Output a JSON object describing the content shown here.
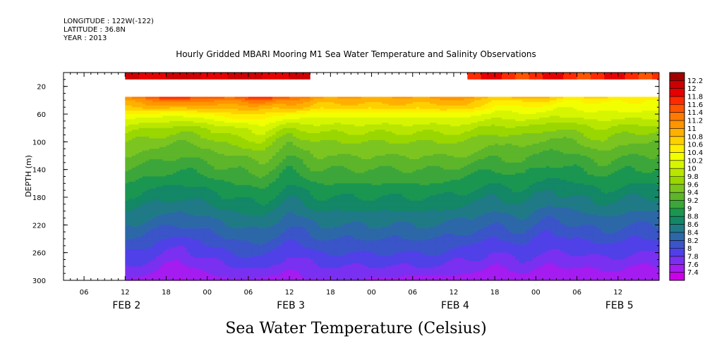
{
  "header": {
    "longitude": "LONGITUDE : 122W(-122)",
    "latitude": "LATITUDE : 36.8N",
    "year": "YEAR : 2013"
  },
  "chart_data": {
    "type": "heatmap",
    "title": "Hourly Gridded MBARI Mooring M1 Sea Water Temperature and Salinity Observations",
    "colorbar_title": "Sea Water Temperature (Celsius)",
    "ylabel": "DEPTH (m)",
    "y_axis": {
      "ylim": [
        300,
        0
      ],
      "inverted": true,
      "ticks": [
        20,
        60,
        100,
        140,
        180,
        220,
        260,
        300
      ]
    },
    "x_axis": {
      "hour_labels": [
        "06",
        "12",
        "18",
        "00",
        "06",
        "12",
        "18",
        "00",
        "06",
        "12",
        "18",
        "00",
        "06",
        "12"
      ],
      "day_labels": [
        "FEB  2",
        "FEB  3",
        "FEB  4",
        "FEB  5"
      ],
      "range_hours_from_feb2_00": [
        3,
        90
      ],
      "data_start_hour": 12
    },
    "colorbar": {
      "levels": [
        12.2,
        12,
        11.8,
        11.6,
        11.4,
        11.2,
        11,
        10.8,
        10.6,
        10.4,
        10.2,
        10,
        9.8,
        9.6,
        9.4,
        9.2,
        9,
        8.8,
        8.6,
        8.4,
        8.2,
        8,
        7.8,
        7.6,
        7.4
      ],
      "colors": [
        "#a00000",
        "#cc0000",
        "#e60000",
        "#ff2a00",
        "#ff5500",
        "#ff7a00",
        "#ff9500",
        "#ffb000",
        "#ffd000",
        "#ffee00",
        "#f2ff00",
        "#d6f500",
        "#b8e600",
        "#9ad600",
        "#7cc520",
        "#5db52a",
        "#3ca63a",
        "#1a9650",
        "#138766",
        "#1f7a86",
        "#2c68a8",
        "#3a55c8",
        "#5040e8",
        "#7a30f0",
        "#a41cf0",
        "#cc00e8"
      ]
    },
    "missing_depth_m": [
      0,
      35
    ],
    "surface_band": [
      {
        "start_hour": 12,
        "end_hour": 39,
        "temp": 12.0
      },
      {
        "start_hour": 62,
        "end_hour": 90,
        "temp": 11.7
      }
    ],
    "depth_levels_m": [
      35,
      40,
      50,
      60,
      80,
      100,
      120,
      140,
      160,
      180,
      200,
      220,
      240,
      260,
      280,
      300
    ],
    "time_hours": [
      12,
      16,
      20,
      24,
      28,
      32,
      36,
      40,
      46,
      52,
      58,
      62,
      66,
      70,
      74,
      78,
      82,
      86,
      90
    ],
    "temperature_grid": [
      [
        11.2,
        11.6,
        11.9,
        11.5,
        11.5,
        11.9,
        11.5,
        11.1,
        11.0,
        11.0,
        11.1,
        11.2,
        10.7,
        11.0,
        10.8,
        10.6,
        10.7,
        10.5,
        10.6
      ],
      [
        11.0,
        11.2,
        11.4,
        11.2,
        11.2,
        11.4,
        11.2,
        10.9,
        10.9,
        10.9,
        10.9,
        11.0,
        10.5,
        10.7,
        10.6,
        10.4,
        10.5,
        10.4,
        10.4
      ],
      [
        10.8,
        10.9,
        10.9,
        10.9,
        10.9,
        10.9,
        10.9,
        10.7,
        10.7,
        10.7,
        10.7,
        10.8,
        10.3,
        10.4,
        10.3,
        10.2,
        10.3,
        10.3,
        10.3
      ],
      [
        10.4,
        10.3,
        10.3,
        10.4,
        10.6,
        10.6,
        10.4,
        10.3,
        10.3,
        10.3,
        10.3,
        10.3,
        10.1,
        10.2,
        10.1,
        10.1,
        10.2,
        10.1,
        10.2
      ],
      [
        9.9,
        9.8,
        9.7,
        9.8,
        10.0,
        10.1,
        9.8,
        9.9,
        9.9,
        9.9,
        9.9,
        9.9,
        9.7,
        9.8,
        9.6,
        9.7,
        9.8,
        9.7,
        9.7
      ],
      [
        9.6,
        9.5,
        9.4,
        9.5,
        9.7,
        9.8,
        9.4,
        9.6,
        9.6,
        9.6,
        9.6,
        9.6,
        9.4,
        9.5,
        9.3,
        9.4,
        9.6,
        9.4,
        9.4
      ],
      [
        9.4,
        9.3,
        9.2,
        9.3,
        9.4,
        9.5,
        9.2,
        9.4,
        9.4,
        9.4,
        9.4,
        9.4,
        9.2,
        9.3,
        9.1,
        9.2,
        9.3,
        9.2,
        9.2
      ],
      [
        9.2,
        9.1,
        9.0,
        9.1,
        9.2,
        9.3,
        9.0,
        9.2,
        9.2,
        9.2,
        9.2,
        9.1,
        9.0,
        9.1,
        8.9,
        9.0,
        9.1,
        9.0,
        9.0
      ],
      [
        9.0,
        8.9,
        8.8,
        8.9,
        9.0,
        9.1,
        8.8,
        9.0,
        9.0,
        9.0,
        9.0,
        8.9,
        8.8,
        8.9,
        8.7,
        8.8,
        8.9,
        8.8,
        8.8
      ],
      [
        8.8,
        8.7,
        8.6,
        8.7,
        8.8,
        8.9,
        8.6,
        8.8,
        8.8,
        8.8,
        8.8,
        8.7,
        8.6,
        8.7,
        8.5,
        8.6,
        8.7,
        8.6,
        8.6
      ],
      [
        8.6,
        8.5,
        8.4,
        8.5,
        8.6,
        8.7,
        8.4,
        8.6,
        8.6,
        8.6,
        8.6,
        8.5,
        8.4,
        8.5,
        8.3,
        8.4,
        8.5,
        8.4,
        8.4
      ],
      [
        8.4,
        8.3,
        8.2,
        8.3,
        8.4,
        8.5,
        8.2,
        8.4,
        8.4,
        8.4,
        8.4,
        8.3,
        8.2,
        8.3,
        8.1,
        8.2,
        8.3,
        8.2,
        8.2
      ],
      [
        8.2,
        8.1,
        7.9,
        8.1,
        8.2,
        8.3,
        8.0,
        8.2,
        8.2,
        8.2,
        8.2,
        8.1,
        8.0,
        8.1,
        7.9,
        8.0,
        8.1,
        8.0,
        8.0
      ],
      [
        8.0,
        7.9,
        7.7,
        7.9,
        8.0,
        8.1,
        7.8,
        8.0,
        8.0,
        8.0,
        8.0,
        7.9,
        7.8,
        7.9,
        7.8,
        7.8,
        7.9,
        7.8,
        7.8
      ],
      [
        7.8,
        7.7,
        7.5,
        7.7,
        7.8,
        7.9,
        7.6,
        7.8,
        7.8,
        7.8,
        7.8,
        7.7,
        7.6,
        7.7,
        7.6,
        7.6,
        7.7,
        7.6,
        7.6
      ],
      [
        7.6,
        7.5,
        7.4,
        7.5,
        7.6,
        7.5,
        7.5,
        7.6,
        7.6,
        7.5,
        7.5,
        7.5,
        7.4,
        7.5,
        7.5,
        7.4,
        7.4,
        7.5,
        7.5
      ]
    ]
  }
}
